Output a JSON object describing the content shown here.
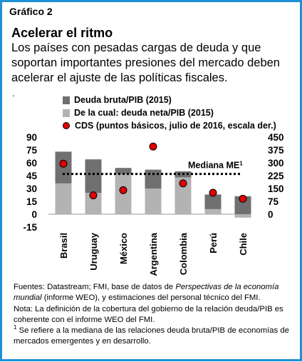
{
  "figure_label": "Gráfico 2",
  "title": "Acelerar el ritmo",
  "subtitle": "Los países con pesadas cargas de deuda y que soportan importantes presiones del mercado deben acelerar el ajuste de las políticas fiscales.",
  "stray_mark": ".",
  "colors": {
    "gross": "#707070",
    "net": "#b3b3b3",
    "cds": "#e00000",
    "frame": "#1f8fd6"
  },
  "chart_data": {
    "type": "bar",
    "categories": [
      "Brasil",
      "Uruguay",
      "México",
      "Argentina",
      "Colombia",
      "Perú",
      "Chile"
    ],
    "series": [
      {
        "name": "Deuda bruta/PIB (2015)",
        "values": [
          73,
          64,
          54,
          52,
          50,
          23,
          21
        ]
      },
      {
        "name": "De la cual: deuda neta/PIB (2015)",
        "values": [
          36,
          25,
          47,
          30,
          43,
          6,
          -4
        ]
      },
      {
        "name": "CDS (puntos básicos, julio de 2016, escala der.)",
        "axis": "right",
        "values": [
          295,
          110,
          140,
          395,
          180,
          125,
          90
        ]
      }
    ],
    "median": {
      "label": "Mediana ME",
      "sup": "1",
      "value": 47
    },
    "left_axis": {
      "ticks": [
        "90",
        "75",
        "60",
        "45",
        "30",
        "15",
        "0",
        "-15"
      ],
      "min": -15,
      "max": 90
    },
    "right_axis": {
      "ticks": [
        "450",
        "375",
        "300",
        "225",
        "150",
        "75",
        "0"
      ],
      "min": 0,
      "max": 450
    }
  },
  "notes": {
    "sources_prefix": "Fuentes: Datastream; FMI, base de datos de ",
    "sources_italic": "Perspectivas de la economía mundial",
    "sources_suffix": " (informe WEO), y estimaciones del personal técnico del FMI.",
    "note": "Nota: La definición de la cobertura del gobierno de la relación deuda/PIB es coherente con el informe WEO del FMI.",
    "footnote_mark": "1",
    "footnote": " Se refiere a la mediana de las relaciones deuda bruta/PIB de economías de mercados emergentes y en desarrollo."
  }
}
